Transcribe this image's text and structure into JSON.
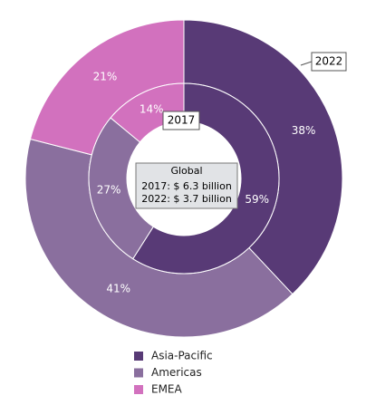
{
  "chart_data": {
    "type": "donut",
    "categories": [
      "Asia-Pacific",
      "Americas",
      "EMEA"
    ],
    "colors": [
      "#583a76",
      "#8a6f9e",
      "#d271be"
    ],
    "rings": [
      {
        "name": "2022",
        "values": [
          38,
          41,
          21
        ],
        "value_labels": [
          "38%",
          "41%",
          "21%"
        ]
      },
      {
        "name": "2017",
        "values": [
          59,
          27,
          14
        ],
        "value_labels": [
          "59%",
          "27%",
          "14%"
        ]
      }
    ],
    "annotation": [
      "Global",
      "2017: $ 6.3 billion",
      "2022: $ 3.7 billion"
    ]
  }
}
